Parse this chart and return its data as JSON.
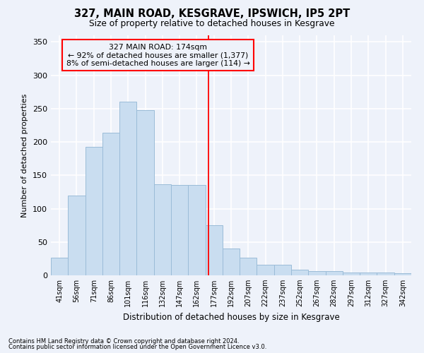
{
  "title": "327, MAIN ROAD, KESGRAVE, IPSWICH, IP5 2PT",
  "subtitle": "Size of property relative to detached houses in Kesgrave",
  "xlabel": "Distribution of detached houses by size in Kesgrave",
  "ylabel": "Number of detached properties",
  "categories": [
    "41sqm",
    "56sqm",
    "71sqm",
    "86sqm",
    "101sqm",
    "116sqm",
    "132sqm",
    "147sqm",
    "162sqm",
    "177sqm",
    "192sqm",
    "207sqm",
    "222sqm",
    "237sqm",
    "252sqm",
    "267sqm",
    "282sqm",
    "297sqm",
    "312sqm",
    "327sqm",
    "342sqm"
  ],
  "values": [
    27,
    120,
    193,
    214,
    260,
    248,
    137,
    136,
    136,
    75,
    40,
    27,
    16,
    16,
    8,
    6,
    6,
    4,
    4,
    4,
    3
  ],
  "bar_color": "#c9ddf0",
  "bar_edge_color": "#9bbcd8",
  "background_color": "#eef2fa",
  "grid_color": "#ffffff",
  "ylim": [
    0,
    360
  ],
  "yticks": [
    0,
    50,
    100,
    150,
    200,
    250,
    300,
    350
  ],
  "red_line_x": 8.67,
  "annotation_title": "327 MAIN ROAD: 174sqm",
  "annotation_line1": "← 92% of detached houses are smaller (1,377)",
  "annotation_line2": "8% of semi-detached houses are larger (114) →",
  "footnote1": "Contains HM Land Registry data © Crown copyright and database right 2024.",
  "footnote2": "Contains public sector information licensed under the Open Government Licence v3.0."
}
